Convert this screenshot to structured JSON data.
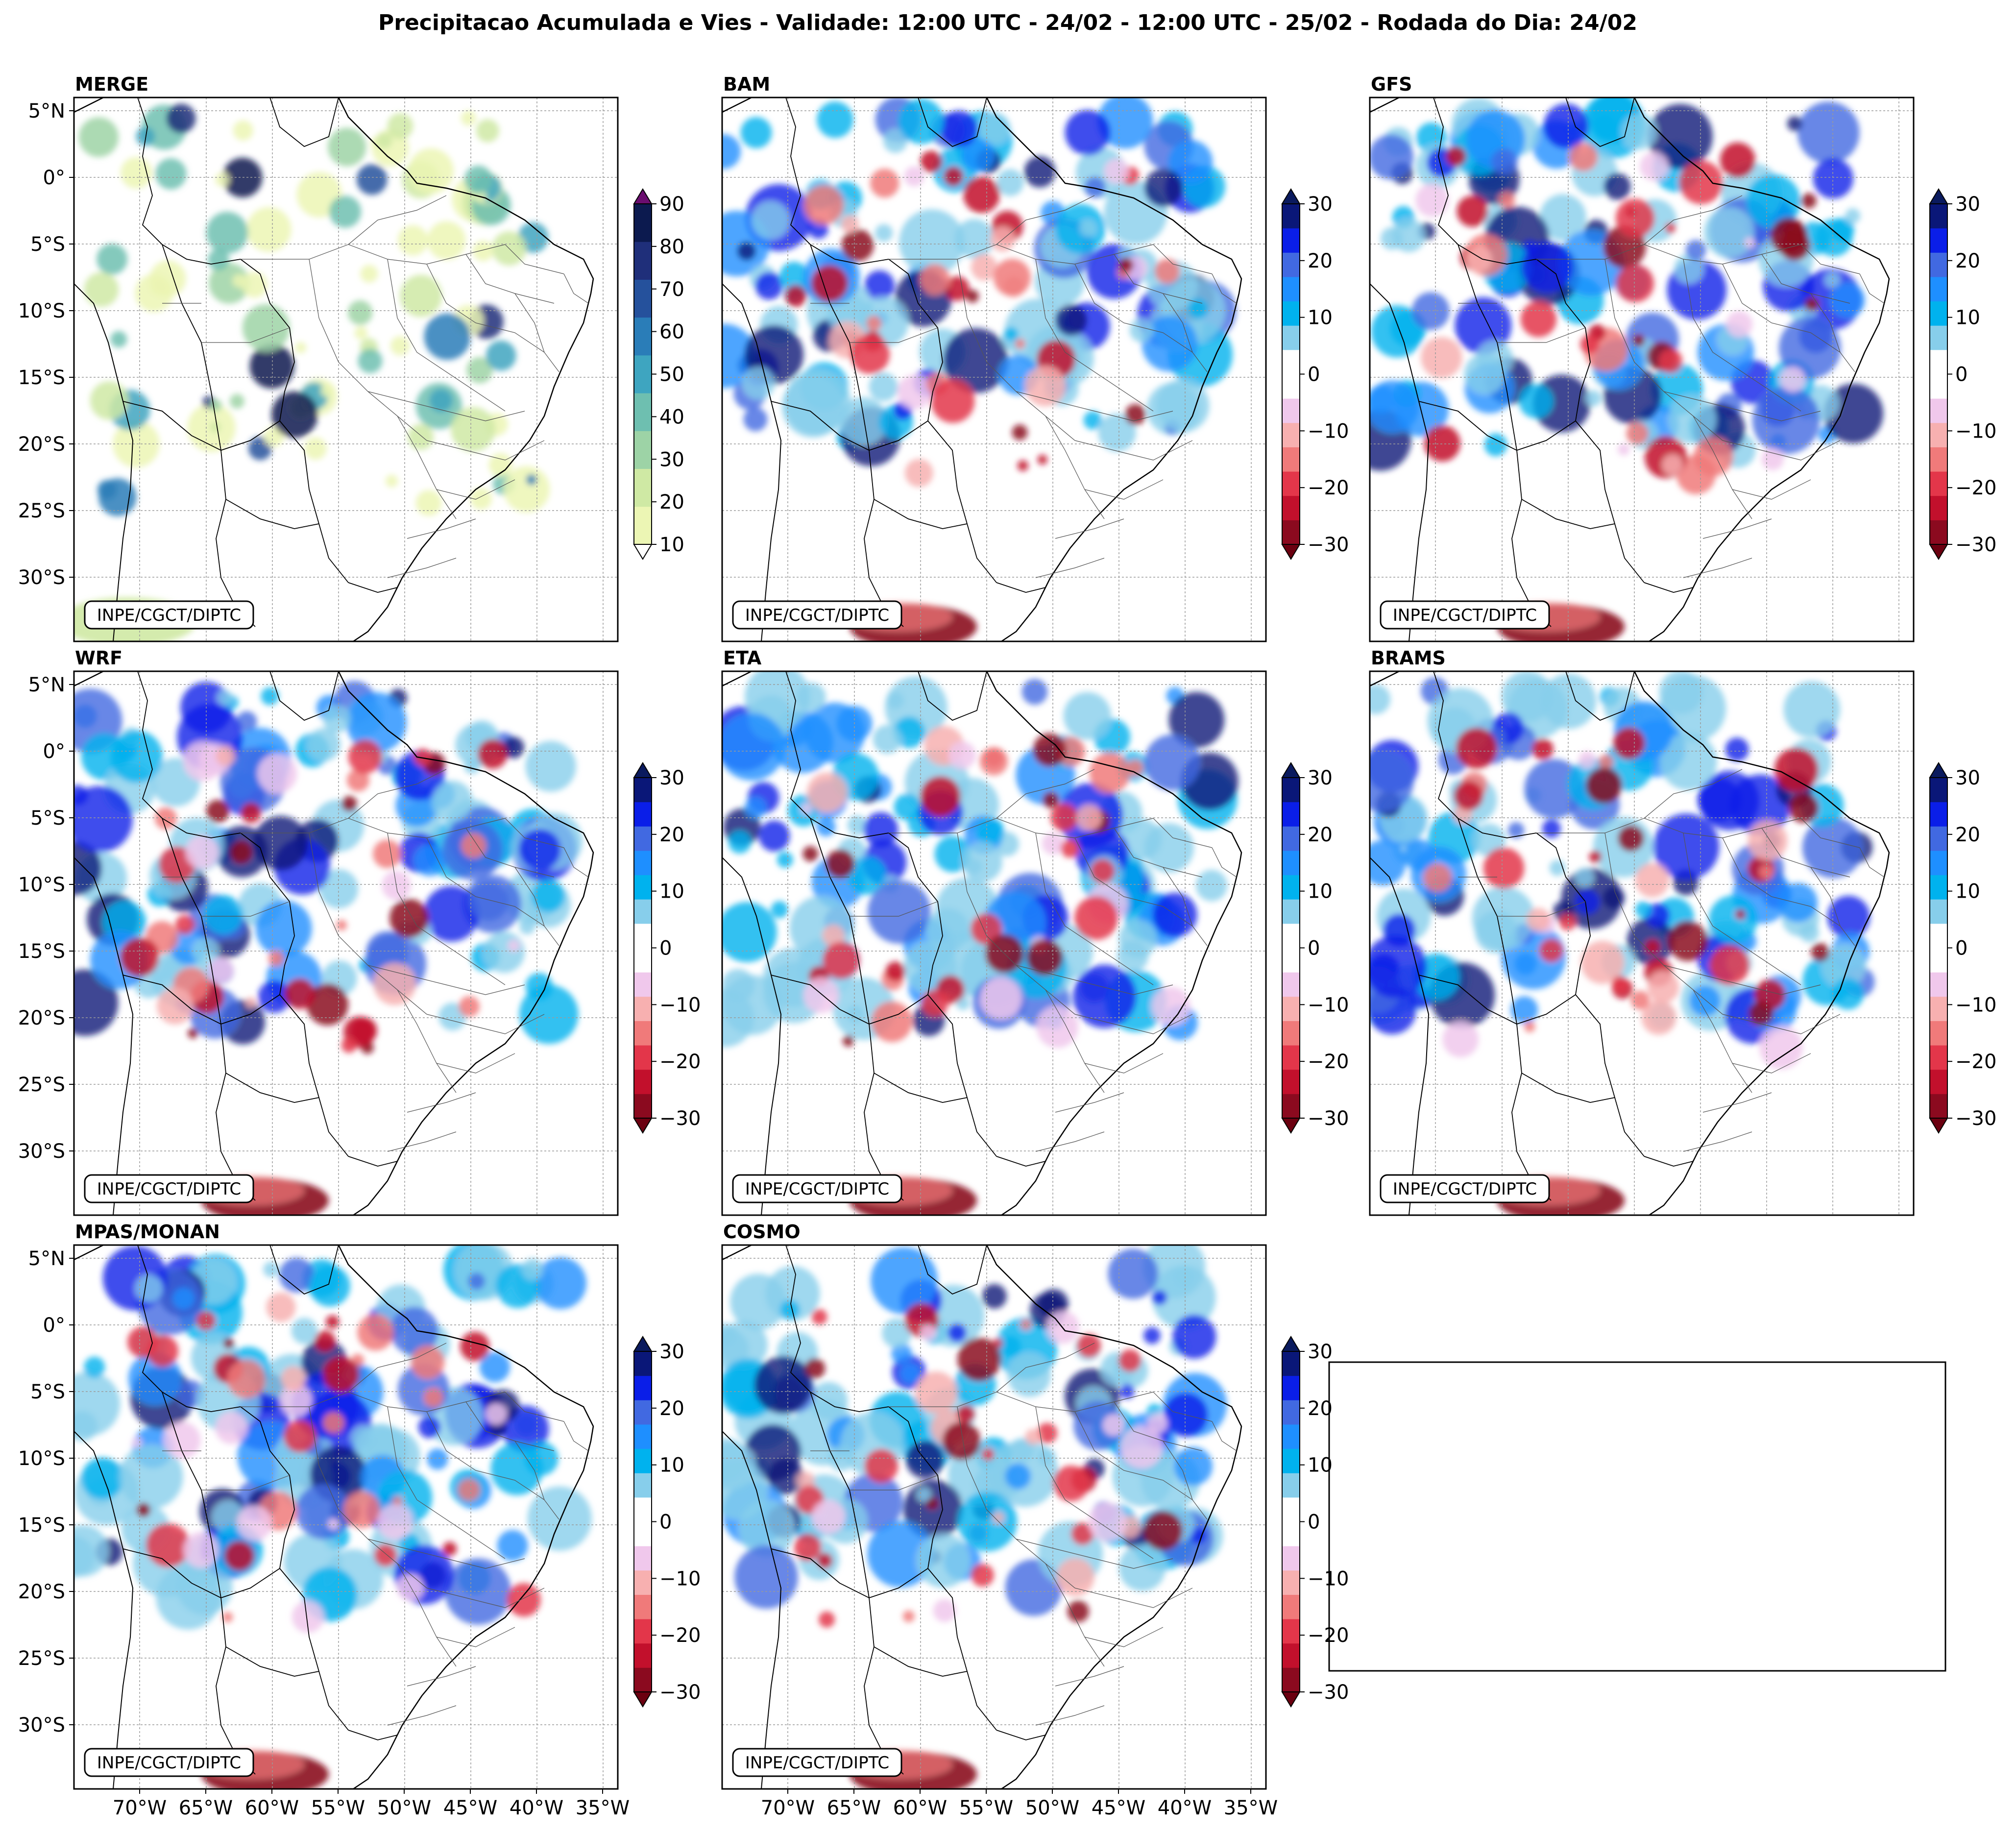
{
  "figure_title": "Precipitacao Acumulada e Vies - Validade: 12:00 UTC - 24/02 - 12:00 UTC - 25/02 - Rodada do Dia: 24/02",
  "credit": "INPE/CGCT/DIPTC",
  "lat_ticks": [
    "5°N",
    "0°",
    "5°S",
    "10°S",
    "15°S",
    "20°S",
    "25°S",
    "30°S"
  ],
  "lon_ticks": [
    "70°W",
    "65°W",
    "60°W",
    "55°W",
    "50°W",
    "45°W",
    "40°W",
    "35°W"
  ],
  "panels": [
    {
      "id": "merge",
      "title": "MERGE",
      "scale": "precip"
    },
    {
      "id": "bam",
      "title": "BAM",
      "scale": "bias"
    },
    {
      "id": "gfs",
      "title": "GFS",
      "scale": "bias"
    },
    {
      "id": "wrf",
      "title": "WRF",
      "scale": "bias"
    },
    {
      "id": "eta",
      "title": "ETA",
      "scale": "bias"
    },
    {
      "id": "brams",
      "title": "BRAMS",
      "scale": "bias"
    },
    {
      "id": "mpas",
      "title": "MPAS/MONAN",
      "scale": "bias"
    },
    {
      "id": "cosmo",
      "title": "COSMO",
      "scale": "bias"
    }
  ],
  "precip_scale": {
    "ticks": [
      "90",
      "80",
      "70",
      "60",
      "50",
      "40",
      "30",
      "20",
      "10"
    ],
    "colors": [
      "#ecf6b4",
      "#cfe9a4",
      "#9dd3a6",
      "#6ebfb0",
      "#3ea5c0",
      "#2a7db8",
      "#25519c",
      "#1f2f7a",
      "#0c1a4f"
    ],
    "over_color": "#6a0d6f",
    "under_color": "#ffffff"
  },
  "bias_scale": {
    "ticks": [
      "30",
      "20",
      "10",
      "0",
      "−10",
      "−20",
      "−30"
    ],
    "colors": [
      "#8b0a1f",
      "#c2102c",
      "#e3364a",
      "#f07a7a",
      "#f7b0b0",
      "#f0c8ec",
      "#ffffff",
      "#ffffff",
      "#87ceeb",
      "#00b2ee",
      "#1e8fff",
      "#4169e1",
      "#0a1ee8",
      "#0a1778"
    ],
    "over_color": "#0a1a5e",
    "under_color": "#6b0010"
  }
}
